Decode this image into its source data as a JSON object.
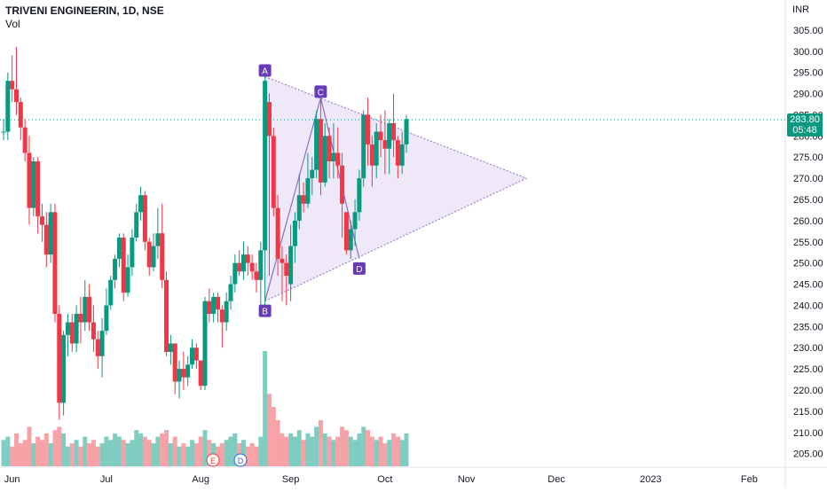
{
  "header": {
    "title": "TRIVENI ENGINEERIN, 1D, NSE",
    "volume_label": "Vol",
    "currency": "INR"
  },
  "price_tag": {
    "price": "283.80",
    "countdown": "05:48"
  },
  "colors": {
    "up": "#089981",
    "down": "#f23645",
    "up_volume": "#7fcdc0",
    "down_volume": "#f7a2a7",
    "pattern_fill": "#ebe4f7",
    "pattern_line": "#8a6fc8",
    "label_bg": "#673ab7",
    "last_price_line": "#089981"
  },
  "chart_data": {
    "type": "candlestick",
    "ylim": [
      202,
      310
    ],
    "y_ticks": [
      205,
      210,
      215,
      220,
      225,
      230,
      235,
      240,
      245,
      250,
      255,
      260,
      265,
      270,
      275,
      280,
      285,
      290,
      295,
      300,
      305
    ],
    "x_labels": [
      {
        "label": "Jun",
        "index": 2
      },
      {
        "label": "Jul",
        "index": 24
      },
      {
        "label": "Aug",
        "index": 46
      },
      {
        "label": "Sep",
        "index": 67
      },
      {
        "label": "Oct",
        "index": 89
      },
      {
        "label": "Nov",
        "index": 108
      },
      {
        "label": "Dec",
        "index": 129
      },
      {
        "label": "2023",
        "index": 151
      },
      {
        "label": "Feb",
        "index": 174
      }
    ],
    "candles": [
      [
        281,
        284,
        279,
        281,
        8
      ],
      [
        281,
        295,
        279,
        293,
        9
      ],
      [
        293,
        299,
        288,
        291,
        6
      ],
      [
        291,
        301,
        285,
        288,
        10
      ],
      [
        288,
        289,
        279,
        282,
        7
      ],
      [
        282,
        284,
        274,
        276,
        8
      ],
      [
        276,
        280,
        259,
        263,
        12
      ],
      [
        263,
        275,
        261,
        274,
        7
      ],
      [
        274,
        275,
        257,
        261,
        9
      ],
      [
        261,
        264,
        255,
        259,
        8
      ],
      [
        259,
        262,
        249,
        252,
        10
      ],
      [
        252,
        264,
        250,
        262,
        7
      ],
      [
        262,
        264,
        236,
        238,
        11
      ],
      [
        238,
        240,
        213,
        217,
        12
      ],
      [
        217,
        234,
        214,
        233,
        10
      ],
      [
        233,
        238,
        228,
        236,
        6
      ],
      [
        236,
        238,
        229,
        231,
        7
      ],
      [
        231,
        240,
        229,
        238,
        8
      ],
      [
        238,
        242,
        231,
        236,
        6
      ],
      [
        236,
        246,
        234,
        242,
        9
      ],
      [
        242,
        245,
        234,
        236,
        7
      ],
      [
        236,
        240,
        229,
        232,
        8
      ],
      [
        232,
        234,
        225,
        228,
        6
      ],
      [
        228,
        237,
        223,
        234,
        7
      ],
      [
        234,
        244,
        233,
        240,
        9
      ],
      [
        240,
        247,
        239,
        246,
        8
      ],
      [
        246,
        252,
        244,
        251,
        10
      ],
      [
        251,
        257,
        249,
        256,
        9
      ],
      [
        256,
        257,
        241,
        243,
        8
      ],
      [
        243,
        252,
        242,
        249,
        7
      ],
      [
        249,
        258,
        247,
        256,
        8
      ],
      [
        256,
        264,
        255,
        262,
        11
      ],
      [
        262,
        268,
        260,
        266,
        10
      ],
      [
        266,
        267,
        253,
        255,
        9
      ],
      [
        255,
        256,
        247,
        249,
        8
      ],
      [
        249,
        257,
        248,
        254,
        7
      ],
      [
        254,
        263,
        251,
        257,
        9
      ],
      [
        257,
        264,
        244,
        246,
        10
      ],
      [
        246,
        248,
        228,
        229,
        11
      ],
      [
        229,
        233,
        226,
        231,
        7
      ],
      [
        231,
        231,
        219,
        222,
        9
      ],
      [
        222,
        227,
        218,
        225,
        6
      ],
      [
        225,
        229,
        220,
        223,
        7
      ],
      [
        223,
        228,
        221,
        226,
        6
      ],
      [
        226,
        232,
        225,
        230,
        8
      ],
      [
        230,
        231,
        225,
        227,
        7
      ],
      [
        227,
        226,
        220,
        221,
        9
      ],
      [
        221,
        242,
        220,
        241,
        11
      ],
      [
        241,
        244,
        236,
        238,
        8
      ],
      [
        238,
        243,
        236,
        242,
        7
      ],
      [
        242,
        243,
        236,
        239,
        6
      ],
      [
        239,
        240,
        230,
        236,
        7
      ],
      [
        236,
        243,
        234,
        241,
        8
      ],
      [
        241,
        247,
        239,
        245,
        9
      ],
      [
        245,
        252,
        243,
        250,
        10
      ],
      [
        250,
        253,
        247,
        248,
        7
      ],
      [
        248,
        255,
        246,
        252,
        8
      ],
      [
        252,
        254,
        247,
        250,
        6
      ],
      [
        250,
        252,
        246,
        248,
        7
      ],
      [
        248,
        250,
        243,
        246,
        6
      ],
      [
        246,
        255,
        240,
        253,
        9
      ],
      [
        253,
        294,
        240,
        293,
        35
      ],
      [
        288,
        290,
        247,
        280,
        22
      ],
      [
        280,
        282,
        261,
        263,
        18
      ],
      [
        263,
        266,
        247,
        251,
        14
      ],
      [
        251,
        254,
        241,
        250,
        10
      ],
      [
        250,
        252,
        240,
        247,
        9
      ],
      [
        245,
        259,
        241,
        254,
        10
      ],
      [
        254,
        262,
        250,
        260,
        9
      ],
      [
        260,
        271,
        258,
        266,
        11
      ],
      [
        266,
        269,
        262,
        264,
        8
      ],
      [
        264,
        276,
        263,
        270,
        10
      ],
      [
        270,
        275,
        266,
        272,
        9
      ],
      [
        272,
        286,
        270,
        284,
        12
      ],
      [
        284,
        290,
        266,
        269,
        14
      ],
      [
        269,
        283,
        268,
        280,
        10
      ],
      [
        280,
        282,
        270,
        274,
        9
      ],
      [
        274,
        283,
        270,
        276,
        8
      ],
      [
        276,
        282,
        270,
        273,
        9
      ],
      [
        273,
        276,
        256,
        264,
        12
      ],
      [
        262,
        262,
        252,
        253,
        11
      ],
      [
        253,
        260,
        251,
        258,
        9
      ],
      [
        258,
        265,
        254,
        262,
        8
      ],
      [
        262,
        272,
        260,
        270,
        10
      ],
      [
        270,
        286,
        268,
        285,
        12
      ],
      [
        285,
        289,
        273,
        278,
        11
      ],
      [
        278,
        280,
        268,
        273,
        9
      ],
      [
        273,
        283,
        270,
        281,
        8
      ],
      [
        281,
        285,
        275,
        279,
        9
      ],
      [
        279,
        286,
        271,
        277,
        7
      ],
      [
        277,
        284,
        271,
        283,
        8
      ],
      [
        283,
        290,
        275,
        279,
        10
      ],
      [
        279,
        280,
        270,
        273,
        9
      ],
      [
        273,
        281,
        271,
        278,
        8
      ],
      [
        278,
        285,
        276,
        284,
        10
      ]
    ]
  },
  "pattern": {
    "points": [
      {
        "label": "A",
        "index": 61,
        "price": 294
      },
      {
        "label": "B",
        "index": 61,
        "price": 241
      },
      {
        "label": "C",
        "index": 74,
        "price": 289
      },
      {
        "label": "D",
        "index": 83,
        "price": 251
      }
    ],
    "apex": {
      "index": 122,
      "price": 270
    },
    "last_price": 283.8
  }
}
